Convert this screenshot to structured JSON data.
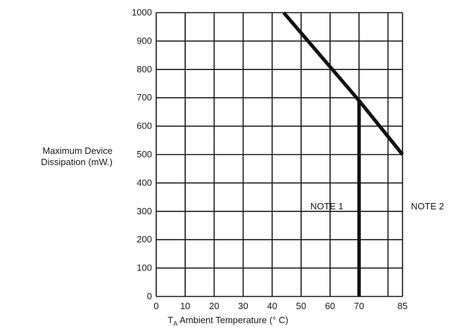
{
  "chart_data": {
    "type": "line",
    "ylabel_lines": [
      "Maximum Device",
      "Dissipation (mW.)"
    ],
    "xlabel_sub": "A",
    "xlabel_prefix": "T",
    "xlabel_rest": " Ambient Temperature (° C)",
    "xlim": [
      0,
      85
    ],
    "ylim": [
      0,
      1000
    ],
    "grid": true,
    "x_ticks": [
      0,
      10,
      20,
      30,
      40,
      50,
      60,
      70,
      85
    ],
    "y_ticks": [
      0,
      100,
      200,
      300,
      400,
      500,
      600,
      700,
      800,
      900,
      1000
    ],
    "series": [
      {
        "note": "NOTE 1",
        "points": [
          [
            44,
            1000
          ],
          [
            70,
            690
          ],
          [
            70,
            0
          ]
        ]
      },
      {
        "note": "NOTE 2",
        "points": [
          [
            70,
            690
          ],
          [
            85,
            500
          ]
        ]
      }
    ]
  }
}
